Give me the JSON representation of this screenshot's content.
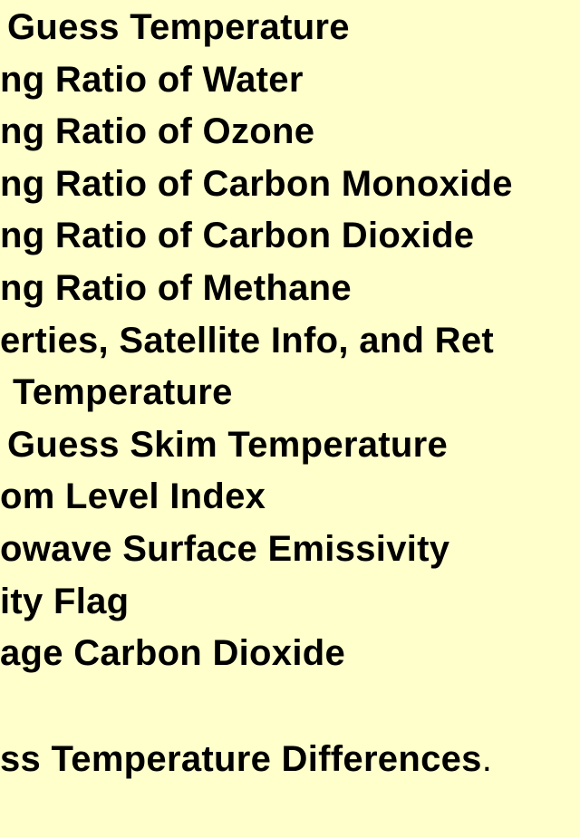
{
  "document": {
    "lines": [
      {
        "indent": 8,
        "text": "Guess Temperature"
      },
      {
        "indent": 0,
        "text": "ng Ratio of Water"
      },
      {
        "indent": 0,
        "text": "ng Ratio of Ozone"
      },
      {
        "indent": 0,
        "text": "ng Ratio of Carbon Monoxide"
      },
      {
        "indent": 0,
        "text": "ng Ratio of Carbon Dioxide"
      },
      {
        "indent": 0,
        "text": "ng Ratio of Methane"
      },
      {
        "indent": 0,
        "text": "erties, Satellite Info, and Ret"
      },
      {
        "indent": 14,
        "text": "Temperature"
      },
      {
        "indent": 8,
        "text": "Guess Skim Temperature"
      },
      {
        "indent": 0,
        "text": "om Level Index"
      },
      {
        "indent": 0,
        "text": "owave Surface Emissivity"
      },
      {
        "indent": 0,
        "text": "ity Flag"
      },
      {
        "indent": 0,
        "text": "age Carbon Dioxide"
      }
    ],
    "closing": {
      "text": "ss Temperature Differences",
      "period": "."
    }
  }
}
